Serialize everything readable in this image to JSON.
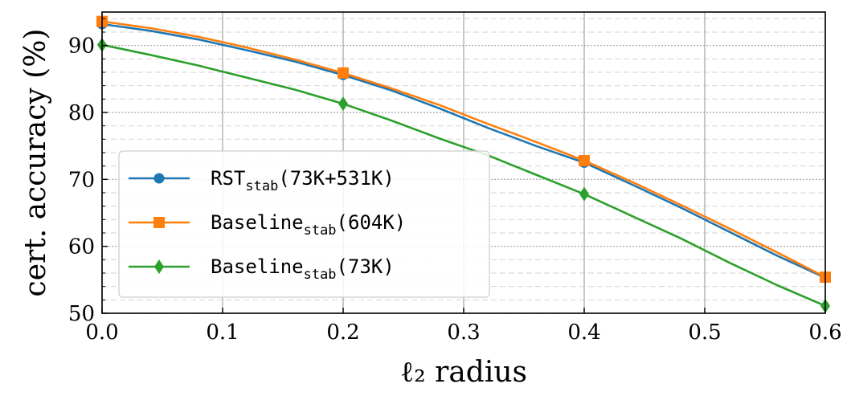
{
  "chart_data": {
    "type": "line",
    "xlabel": "ℓ₂ radius",
    "ylabel": "cert. accuracy (%)",
    "xlim": [
      0.0,
      0.6
    ],
    "ylim": [
      50,
      95
    ],
    "x_ticks": [
      "0.0",
      "0.1",
      "0.2",
      "0.3",
      "0.4",
      "0.5",
      "0.6"
    ],
    "y_ticks": [
      "50",
      "60",
      "70",
      "80",
      "90"
    ],
    "grid": true,
    "legend_position": "lower-left",
    "series": [
      {
        "name_main": "RST",
        "name_sub": "stab",
        "name_suffix": "(73K+531K)",
        "color": "#1f77b4",
        "marker": "circle",
        "x": [
          0.0,
          0.04,
          0.08,
          0.12,
          0.16,
          0.2,
          0.24,
          0.28,
          0.32,
          0.36,
          0.4,
          0.44,
          0.48,
          0.52,
          0.56,
          0.6
        ],
        "y": [
          93.2,
          92.2,
          90.9,
          89.3,
          87.6,
          85.6,
          83.3,
          80.6,
          77.7,
          75.0,
          72.5,
          69.2,
          65.8,
          62.2,
          58.6,
          55.3
        ],
        "marked": [
          0.0,
          0.2,
          0.4,
          0.6
        ]
      },
      {
        "name_main": "Baseline",
        "name_sub": "stab",
        "name_suffix": "(604K)",
        "color": "#ff7f0e",
        "marker": "square",
        "x": [
          0.0,
          0.04,
          0.08,
          0.12,
          0.16,
          0.2,
          0.24,
          0.28,
          0.32,
          0.36,
          0.4,
          0.44,
          0.48,
          0.52,
          0.56,
          0.6
        ],
        "y": [
          93.6,
          92.6,
          91.3,
          89.7,
          87.9,
          85.9,
          83.6,
          81.1,
          78.3,
          75.6,
          72.8,
          69.6,
          66.2,
          62.7,
          59.1,
          55.4
        ],
        "marked": [
          0.0,
          0.2,
          0.4,
          0.6
        ]
      },
      {
        "name_main": "Baseline",
        "name_sub": "stab",
        "name_suffix": "(73K)",
        "color": "#2ca02c",
        "marker": "diamond",
        "x": [
          0.0,
          0.04,
          0.08,
          0.12,
          0.16,
          0.2,
          0.24,
          0.28,
          0.32,
          0.36,
          0.4,
          0.44,
          0.48,
          0.52,
          0.56,
          0.6
        ],
        "y": [
          90.1,
          88.6,
          87.0,
          85.2,
          83.4,
          81.3,
          78.8,
          76.1,
          73.6,
          70.7,
          67.8,
          64.5,
          61.2,
          57.6,
          54.2,
          51.1
        ],
        "marked": [
          0.0,
          0.2,
          0.4,
          0.6
        ]
      }
    ]
  }
}
